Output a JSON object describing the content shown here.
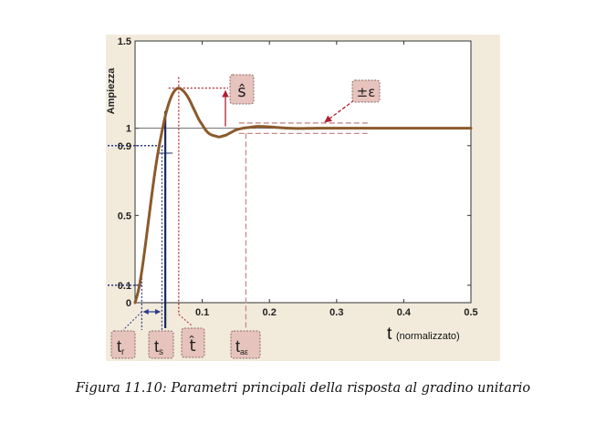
{
  "caption": "Figura 11.10: Parametri principali della risposta al gradino unitario",
  "chart_data": {
    "type": "line",
    "ylabel": "Ampiezza",
    "xlabel_main": "t",
    "xlabel_sub": "(normalizzato)",
    "xlim": [
      0,
      0.5
    ],
    "ylim": [
      0,
      1.5
    ],
    "xticks": [
      0.1,
      0.2,
      0.3,
      0.4,
      0.5
    ],
    "xtick_labels": [
      "0.1",
      "0.2",
      "0.3",
      "0.4",
      "0.5"
    ],
    "yticks": [
      0,
      0.1,
      0.5,
      0.9,
      1,
      1.5
    ],
    "ytick_labels": [
      "0",
      "0.1",
      "0.5",
      "0.9",
      "1",
      "1.5"
    ],
    "series": [
      {
        "x": [
          0,
          0.005,
          0.01,
          0.015,
          0.02,
          0.025,
          0.03,
          0.035,
          0.04,
          0.045,
          0.05,
          0.055,
          0.06,
          0.065,
          0.07,
          0.075,
          0.08,
          0.085,
          0.09,
          0.095,
          0.1,
          0.105,
          0.11,
          0.115,
          0.12,
          0.125,
          0.13,
          0.135,
          0.14,
          0.145,
          0.15,
          0.16,
          0.17,
          0.18,
          0.19,
          0.2,
          0.21,
          0.22,
          0.23,
          0.24,
          0.25,
          0.27,
          0.3,
          0.35,
          0.4,
          0.45,
          0.5
        ],
        "y": [
          0,
          0.07,
          0.18,
          0.32,
          0.47,
          0.62,
          0.76,
          0.88,
          0.98,
          1.07,
          1.14,
          1.19,
          1.22,
          1.23,
          1.22,
          1.2,
          1.17,
          1.13,
          1.09,
          1.05,
          1.02,
          0.99,
          0.97,
          0.96,
          0.955,
          0.95,
          0.955,
          0.96,
          0.97,
          0.98,
          0.99,
          1.0,
          1.005,
          1.01,
          1.01,
          1.008,
          1.005,
          1.002,
          1.0,
          0.999,
          0.999,
          1.0,
          1.0,
          1.0,
          1.0,
          1.0,
          1.0
        ]
      }
    ],
    "annotations": {
      "tr": {
        "base": "t",
        "sub": "r",
        "x_start": 0.01,
        "x_end": 0.04
      },
      "ts": {
        "base": "t",
        "sub": "s",
        "x": 0.045
      },
      "that": {
        "label": "t̂",
        "x": 0.065
      },
      "tae": {
        "base": "t",
        "sub": "aε",
        "x": 0.165
      },
      "shat": {
        "label": "ŝ",
        "peak": 1.23
      },
      "band": {
        "label": "±ε",
        "upper": 1.03,
        "lower": 0.97,
        "x_start": 0.16,
        "x_end": 0.33
      }
    },
    "colors": {
      "curve": "#8b5a2b",
      "ts_line": "#1a2a5c",
      "dotted_blue": "#2d3a8c",
      "dotted_red": "#b02030",
      "dashed": "#c88a8a",
      "label_box": "#e7c3bd",
      "panel_bg": "#f2ebdc"
    }
  }
}
